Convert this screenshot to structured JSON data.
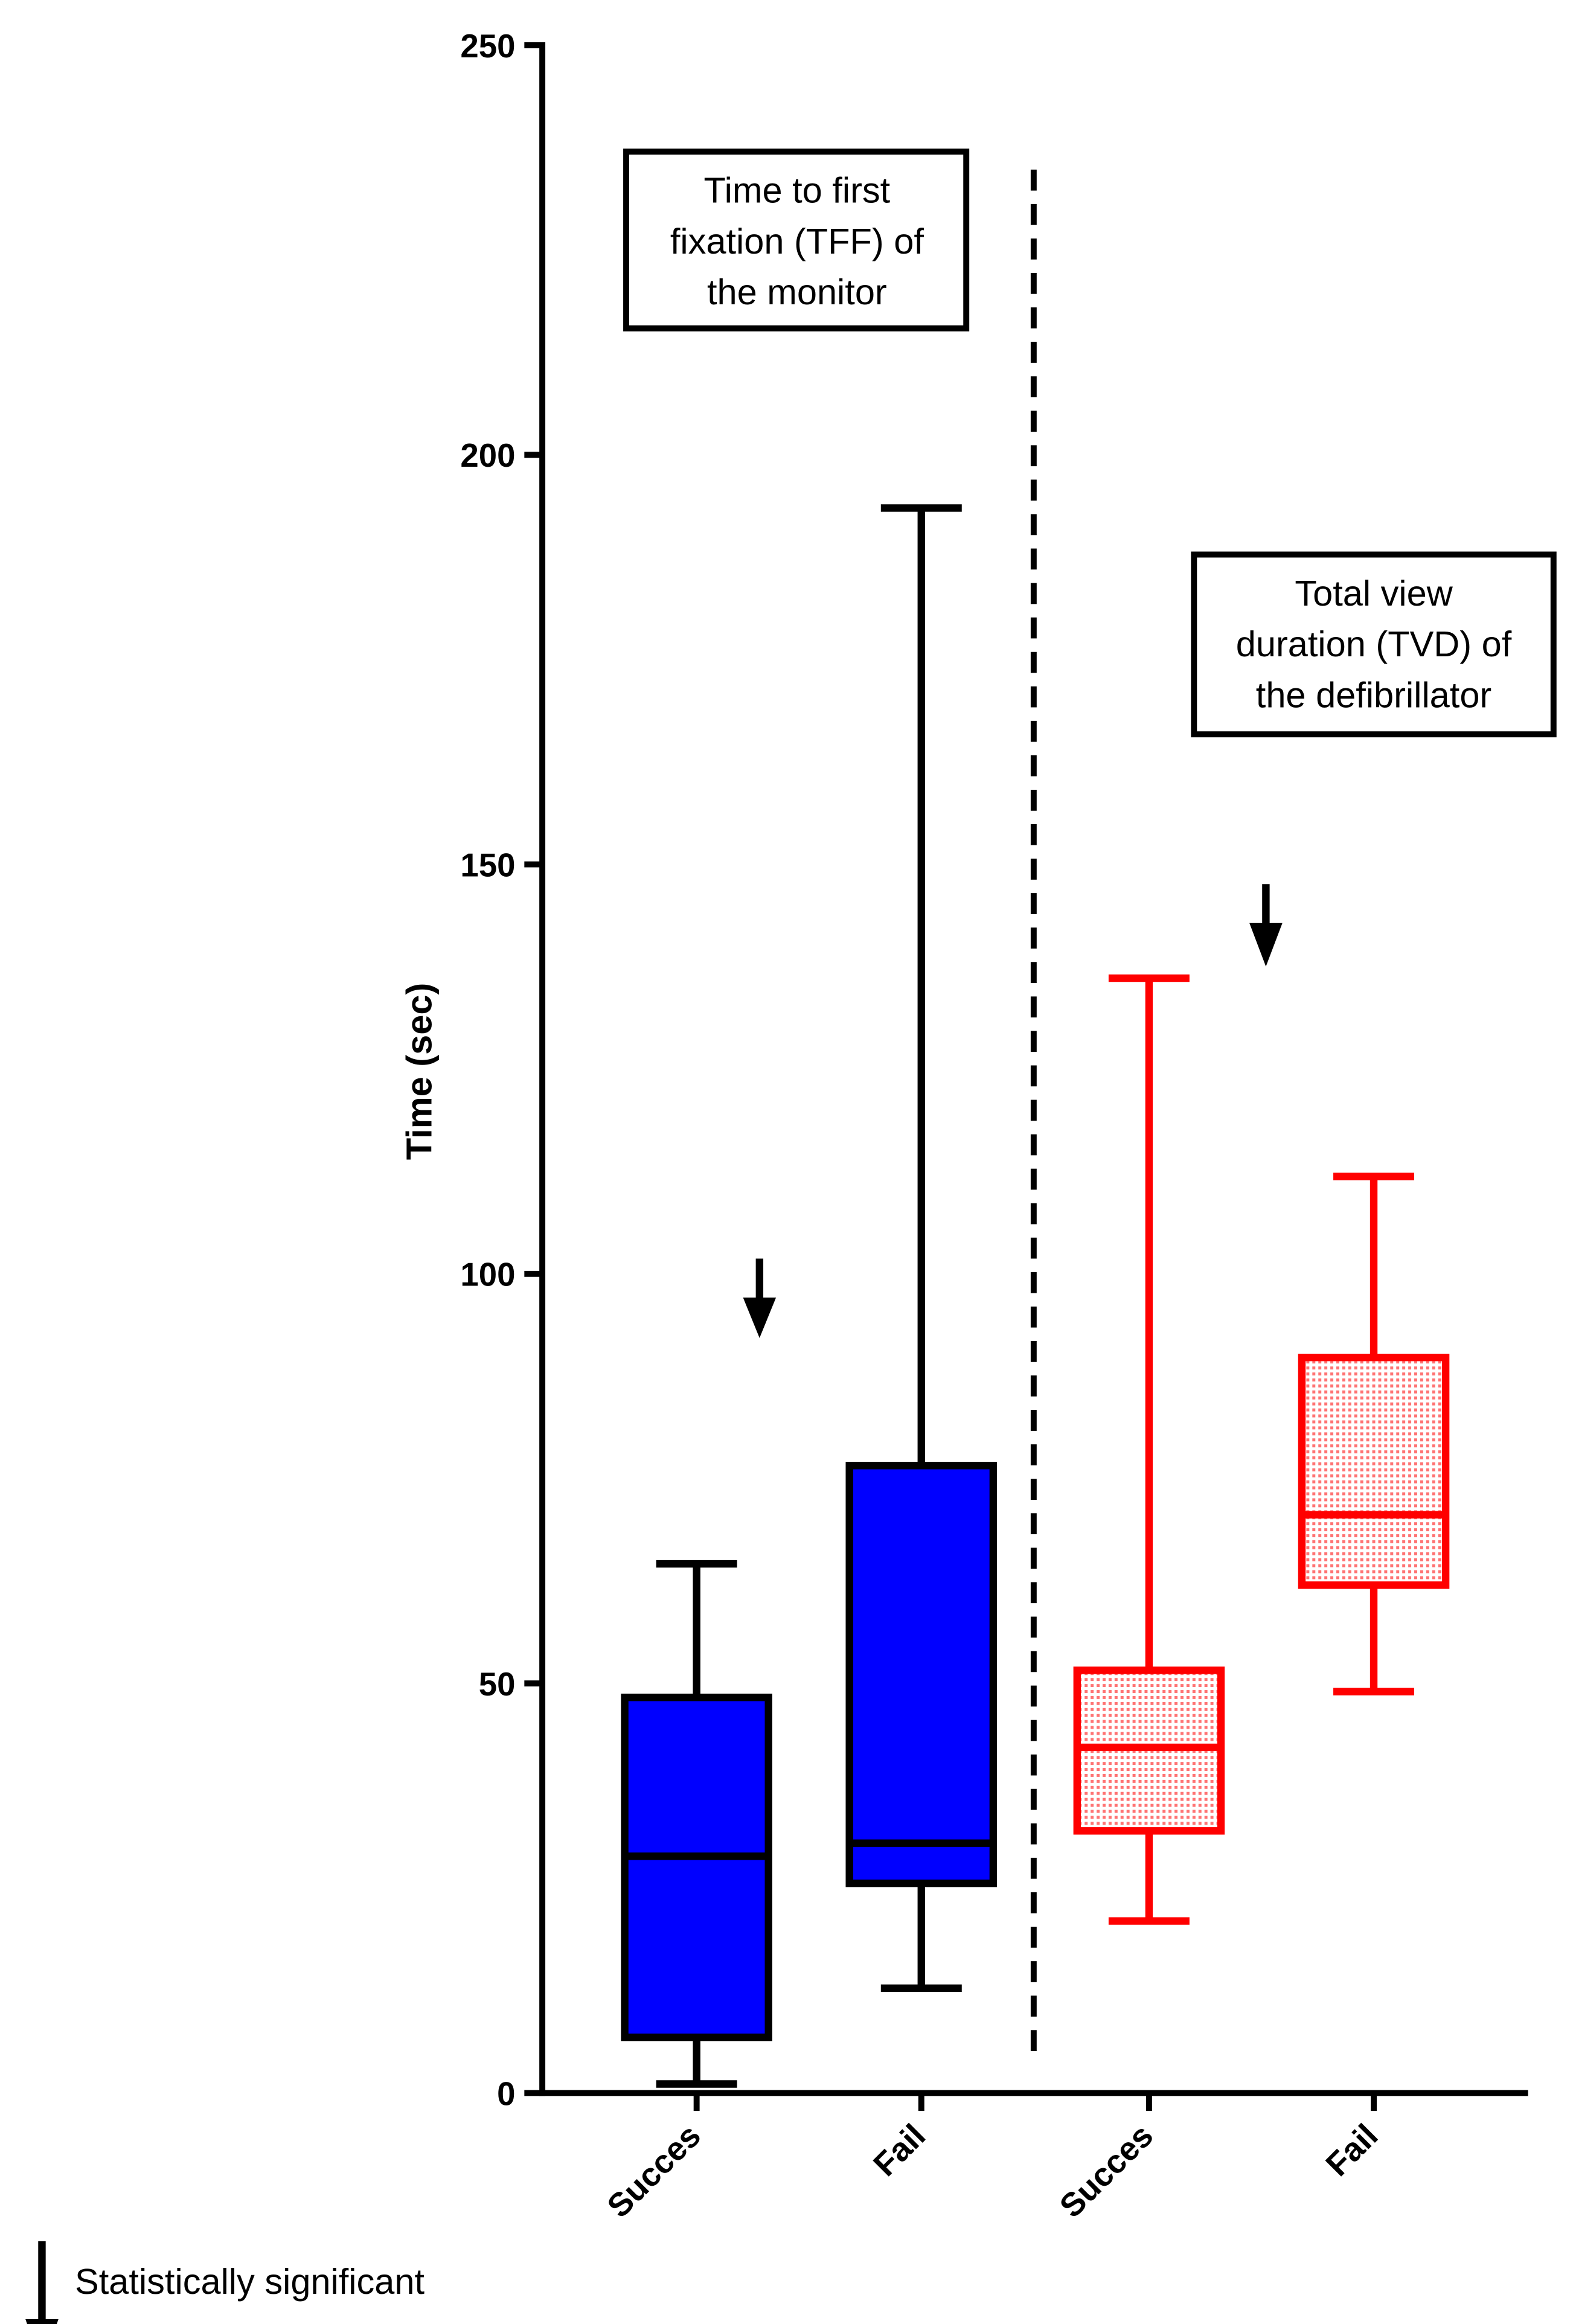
{
  "chart_data": {
    "type": "box",
    "ylabel": "Time (sec)",
    "ylim": [
      0,
      250
    ],
    "yticks": [
      0,
      50,
      100,
      150,
      200,
      250
    ],
    "boxes": [
      {
        "category": "Succes",
        "color": "#0000ff",
        "stroke": "#000000",
        "pattern": "solid",
        "min": 1.1,
        "q1": 6.8,
        "median": 28.9,
        "q3": 48.3,
        "max": 64.6
      },
      {
        "category": "Fail",
        "color": "#0000ff",
        "stroke": "#000000",
        "pattern": "solid",
        "min": 12.8,
        "q1": 25.6,
        "median": 30.5,
        "q3": 76.6,
        "max": 193.5
      },
      {
        "category": "Succes",
        "color": "#ff0000",
        "stroke": "#ff0000",
        "pattern": "dots",
        "min": 21,
        "q1": 32,
        "median": 42.2,
        "q3": 51.6,
        "max": 136.1
      },
      {
        "category": "Fail",
        "color": "#ff0000",
        "stroke": "#ff0000",
        "pattern": "dots",
        "min": 49,
        "q1": 62,
        "median": 70.6,
        "q3": 89.8,
        "max": 111.9
      }
    ],
    "annotations": [
      {
        "lines": [
          "Time to first",
          "fixation (TFF) of",
          "the monitor"
        ]
      },
      {
        "lines": [
          "Total view",
          "duration (TVD) of",
          "the defibrillator"
        ]
      }
    ],
    "legend": "Statistically significant"
  }
}
